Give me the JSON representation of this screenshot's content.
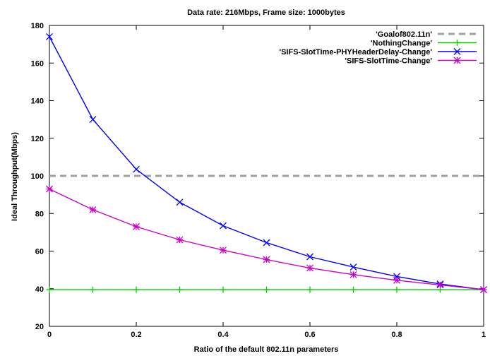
{
  "chart_data": {
    "type": "line",
    "title": "Data rate: 216Mbps, Frame size: 1000bytes",
    "xlabel": "Ratio of the default 802.11n parameters",
    "ylabel": "Ideal Throughput(Mbps)",
    "xlim": [
      0,
      1
    ],
    "ylim": [
      20,
      180
    ],
    "xticks": [
      "0",
      "0.2",
      "0.4",
      "0.6",
      "0.8",
      "1"
    ],
    "yticks": [
      "20",
      "40",
      "60",
      "80",
      "100",
      "120",
      "140",
      "160",
      "180"
    ],
    "grid": false,
    "legend_position": "top-right",
    "x": [
      0,
      0.1,
      0.2,
      0.3,
      0.4,
      0.5,
      0.6,
      0.7,
      0.8,
      0.9,
      1.0
    ],
    "series": [
      {
        "name": "'Goalof802.11n'",
        "color": "#a0a0a0",
        "style": "dashed",
        "marker": "none",
        "values": [
          100,
          100,
          100,
          100,
          100,
          100,
          100,
          100,
          100,
          100,
          100
        ]
      },
      {
        "name": "'NothingChange'",
        "color": "#00cc00",
        "style": "solid",
        "marker": "plus",
        "values": [
          39.5,
          39.5,
          39.5,
          39.5,
          39.5,
          39.5,
          39.5,
          39.5,
          39.5,
          39.5,
          39.5
        ]
      },
      {
        "name": "'SIFS-SlotTime-PHYHeaderDelay-Change'",
        "color": "#0000ff",
        "style": "solid",
        "marker": "x",
        "values": [
          174,
          130,
          103.5,
          86,
          73.5,
          64.5,
          57,
          51.5,
          46.5,
          42.5,
          39.5
        ]
      },
      {
        "name": "'SIFS-SlotTime-Change'",
        "color": "#cc00cc",
        "style": "solid",
        "marker": "star",
        "values": [
          93,
          82,
          73,
          66,
          60.5,
          55.5,
          51,
          47.5,
          44.5,
          42,
          39.5
        ]
      }
    ]
  }
}
